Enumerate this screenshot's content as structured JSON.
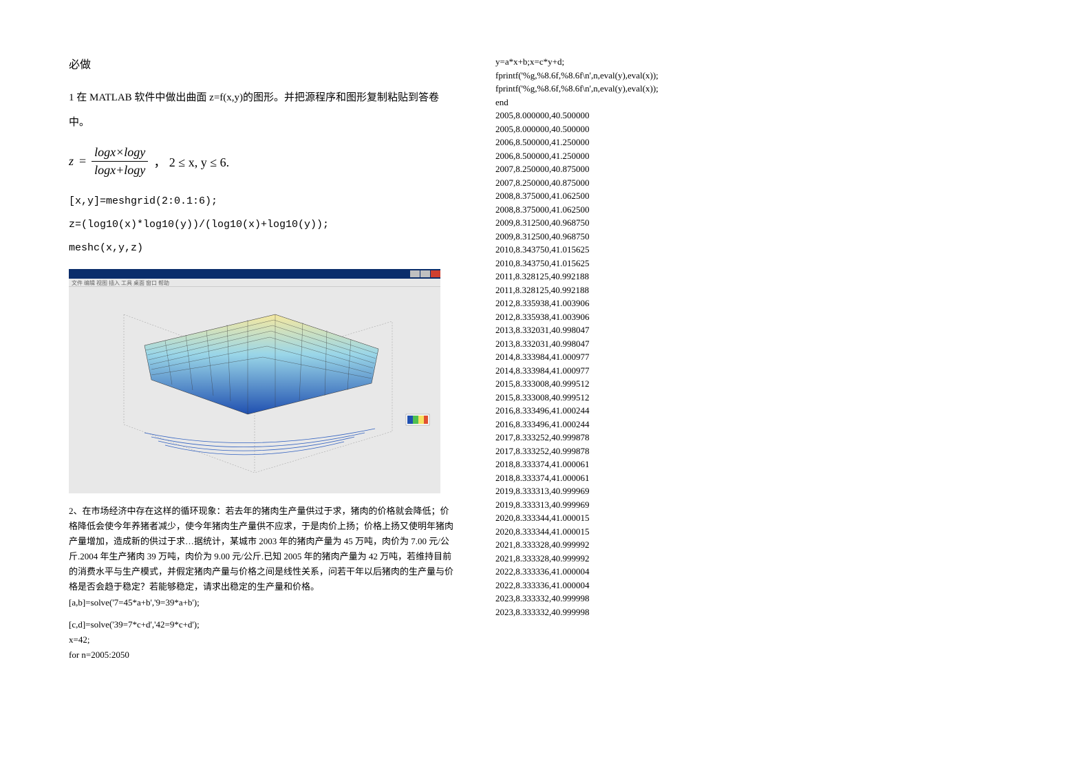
{
  "left": {
    "heading": "必做",
    "p1": "1 在 MATLAB 软件中做出曲面 z=f(x,y)的图形。并把源程序和图形复制粘贴到答卷中。",
    "formula_prefix": "z",
    "formula_num": "logx×logy",
    "formula_den": "logx+logy",
    "formula_cond": "，  2 ≤ x, y ≤ 6.",
    "code1": "[x,y]=meshgrid(2:0.1:6);",
    "code2": "z=(log10(x)*log10(y))/(log10(x)+log10(y));",
    "code3": "meshc(x,y,z)",
    "problem2": "2、在市场经济中存在这样的循环现象：若去年的猪肉生产量供过于求，猪肉的价格就会降低；价格降低会使今年养猪者减少，使今年猪肉生产量供不应求，于是肉价上扬；价格上扬又使明年猪肉产量增加，造成新的供过于求…据统计，某城市 2003 年的猪肉产量为 45 万吨，肉价为 7.00 元/公斤.2004 年生产猪肉 39 万吨，肉价为 9.00 元/公斤.已知 2005 年的猪肉产量为 42 万吨，若维持目前的消费水平与生产模式，并假定猪肉产量与价格之间是线性关系，问若干年以后猪肉的生产量与价格是否会趋于稳定？若能够稳定，请求出稳定的生产量和价格。",
    "p2c1": "[a,b]=solve('7=45*a+b','9=39*a+b');",
    "p2c2": "[c,d]=solve('39=7*c+d','42=9*c+d');",
    "p2c3": "x=42;",
    "p2c4": "for n=2005:2050"
  },
  "right": {
    "c1": "y=a*x+b;x=c*y+d;",
    "c2": "fprintf('%g,%8.6f,%8.6f\\n',n,eval(y),eval(x));",
    "c3": "fprintf('%g,%8.6f,%8.6f\\n',n,eval(y),eval(x));",
    "c4": "end",
    "rows": [
      "2005,8.000000,40.500000",
      "2005,8.000000,40.500000",
      "2006,8.500000,41.250000",
      "2006,8.500000,41.250000",
      "2007,8.250000,40.875000",
      "2007,8.250000,40.875000",
      "2008,8.375000,41.062500",
      "2008,8.375000,41.062500",
      "2009,8.312500,40.968750",
      "2009,8.312500,40.968750",
      "2010,8.343750,41.015625",
      "2010,8.343750,41.015625",
      "2011,8.328125,40.992188",
      "2011,8.328125,40.992188",
      "2012,8.335938,41.003906",
      "2012,8.335938,41.003906",
      "2013,8.332031,40.998047",
      "2013,8.332031,40.998047",
      "2014,8.333984,41.000977",
      "2014,8.333984,41.000977",
      "2015,8.333008,40.999512",
      "2015,8.333008,40.999512",
      "2016,8.333496,41.000244",
      "2016,8.333496,41.000244",
      "2017,8.333252,40.999878",
      "2017,8.333252,40.999878",
      "2018,8.333374,41.000061",
      "2018,8.333374,41.000061",
      "2019,8.333313,40.999969",
      "2019,8.333313,40.999969",
      "2020,8.333344,41.000015",
      "2020,8.333344,41.000015",
      "2021,8.333328,40.999992",
      "2021,8.333328,40.999992",
      "2022,8.333336,41.000004",
      "2022,8.333336,41.000004",
      "2023,8.333332,40.999998",
      "2023,8.333332,40.999998"
    ]
  },
  "figure": {
    "toolbar_text": "文件 编辑 视图 插入 工具 桌面 窗口 帮助",
    "surface": {
      "x_range": [
        2,
        6
      ],
      "y_range": [
        2,
        6
      ],
      "grid_lines": 12,
      "top_color": "#f5e8a0",
      "mid_color": "#9ad6e8",
      "bottom_color": "#2050b0",
      "contour_color": "#3060c0",
      "line_color": "#3a3a3a",
      "bg_color": "#e8e8e8",
      "axis_color": "#999999"
    }
  }
}
